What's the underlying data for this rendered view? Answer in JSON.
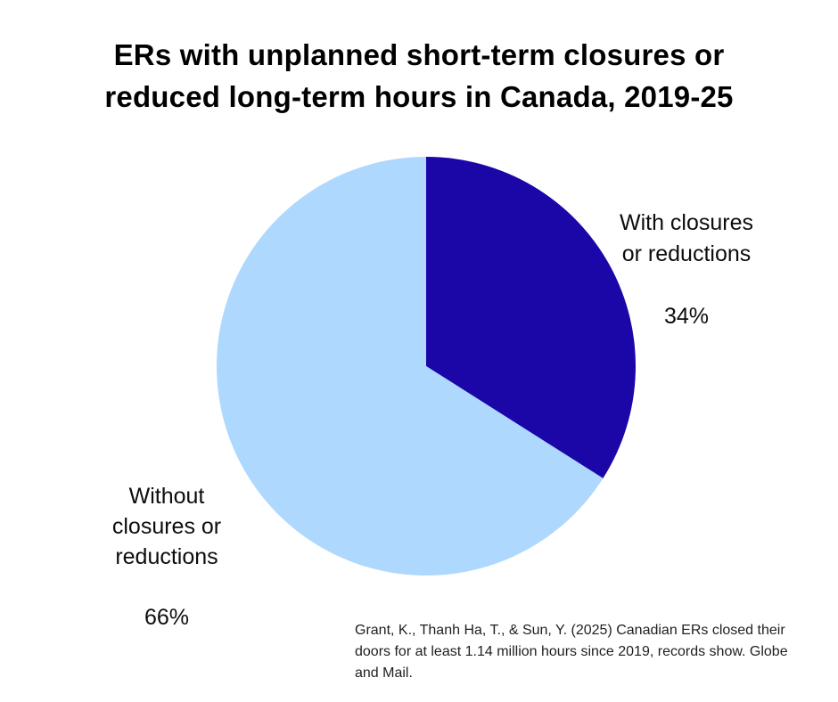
{
  "header": {
    "title_lines": [
      "ERs with unplanned short-term closures or",
      "reduced long-term hours in Canada, 2019-25"
    ]
  },
  "chart_data": {
    "type": "pie",
    "title": "ERs with unplanned short-term closures or reduced long-term hours in Canada, 2019-25",
    "start_angle_deg_from_top": 0,
    "direction": "clockwise",
    "background_color": "#ffffff",
    "slices": [
      {
        "label": "With closures or reductions",
        "label_lines": [
          "With closures",
          "or reductions"
        ],
        "pct_label": "34%",
        "value": 34,
        "color": "#1b06a8"
      },
      {
        "label": "Without closures or reductions",
        "label_lines": [
          "Without",
          "closures or",
          "reductions"
        ],
        "pct_label": "66%",
        "value": 66,
        "color": "#aed8fd"
      }
    ],
    "legend_position": "none",
    "annotations": "labels placed beside slices with percentage values"
  },
  "footer": {
    "source": "Grant, K., Thanh Ha, T., & Sun, Y. (2025) Canadian ERs closed their doors for at least 1.14 million hours since 2019, records show. Globe and Mail."
  }
}
